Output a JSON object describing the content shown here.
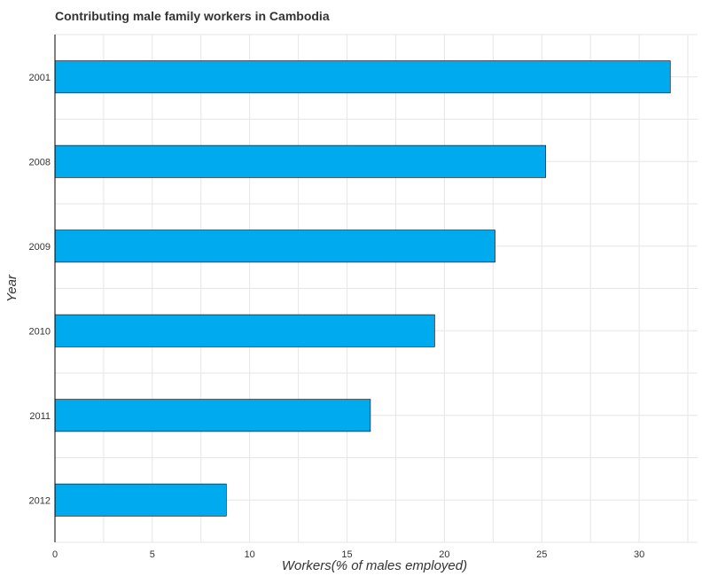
{
  "chart_data": {
    "type": "bar",
    "orientation": "horizontal",
    "title": "Contributing male family workers in Cambodia",
    "xlabel": "Workers(% of males employed)",
    "ylabel": "Year",
    "categories": [
      "2001",
      "2008",
      "2009",
      "2010",
      "2011",
      "2012"
    ],
    "values": [
      31.6,
      25.2,
      22.6,
      19.5,
      16.2,
      8.8
    ],
    "xlim": [
      0,
      33
    ],
    "xticks": [
      0,
      5,
      10,
      15,
      20,
      25,
      30
    ],
    "grid": true,
    "legend": "none",
    "colors": {
      "bar": "#00aaee",
      "bar_stroke": "#000000",
      "grid": "#e6e6e6"
    }
  }
}
